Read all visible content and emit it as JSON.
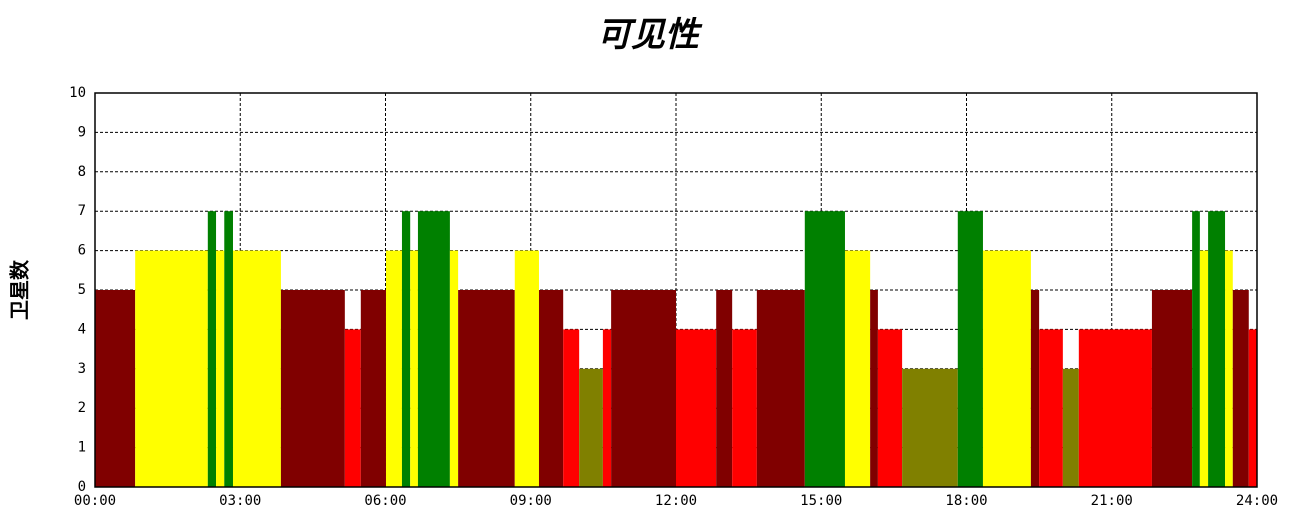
{
  "chart_data": {
    "type": "histogram",
    "title": "可见性",
    "y_label": "卫星数",
    "bins": [
      0,
      0.83,
      2.33,
      2.5,
      2.67,
      2.85,
      3.84,
      5.16,
      5.49,
      6.01,
      6.34,
      6.51,
      6.67,
      7.33,
      7.5,
      8.67,
      9.17,
      9.67,
      10,
      10.49,
      10.66,
      12,
      12.83,
      13.16,
      13.67,
      14.66,
      15.49,
      16.01,
      16.17,
      16.67,
      17.82,
      18.34,
      19.33,
      19.5,
      19.99,
      20.32,
      21.83,
      22.66,
      22.82,
      22.99,
      23.34,
      23.5,
      23.83,
      24
    ],
    "values": [
      5,
      6,
      7,
      6,
      7,
      6,
      5,
      4,
      5,
      6,
      7,
      6,
      7,
      6,
      5,
      6,
      5,
      4,
      3,
      4,
      5,
      4,
      5,
      4,
      5,
      7,
      6,
      5,
      4,
      3,
      7,
      6,
      5,
      4,
      3,
      4,
      5,
      7,
      6,
      7,
      6,
      5,
      4
    ],
    "colors": [
      "#800000",
      "#ffff00",
      "#008000",
      "#ffff00",
      "#008000",
      "#ffff00",
      "#800000",
      "#ff0000",
      "#800000",
      "#ffff00",
      "#008000",
      "#ffff00",
      "#008000",
      "#ffff00",
      "#800000",
      "#ffff00",
      "#800000",
      "#ff0000",
      "#808000",
      "#ff0000",
      "#800000",
      "#ff0000",
      "#800000",
      "#ff0000",
      "#800000",
      "#008000",
      "#ffff00",
      "#800000",
      "#ff0000",
      "#808000",
      "#008000",
      "#ffff00",
      "#800000",
      "#ff0000",
      "#808000",
      "#ff0000",
      "#800000",
      "#008000",
      "#ffff00",
      "#008000",
      "#ffff00",
      "#800000",
      "#ff0000"
    ],
    "xlim": [
      0,
      24
    ],
    "xticks": [
      {
        "value": 0,
        "label": "00:00"
      },
      {
        "value": 3,
        "label": "03:00"
      },
      {
        "value": 6,
        "label": "06:00"
      },
      {
        "value": 9,
        "label": "09:00"
      },
      {
        "value": 12,
        "label": "12:00"
      },
      {
        "value": 15,
        "label": "15:00"
      },
      {
        "value": 18,
        "label": "18:00"
      },
      {
        "value": 21,
        "label": "21:00"
      },
      {
        "value": 24,
        "label": "24:00"
      }
    ],
    "ylim": [
      0,
      10
    ],
    "yticks": [
      0,
      1,
      2,
      3,
      4,
      5,
      6,
      7,
      8,
      9,
      10
    ],
    "grid": true
  }
}
